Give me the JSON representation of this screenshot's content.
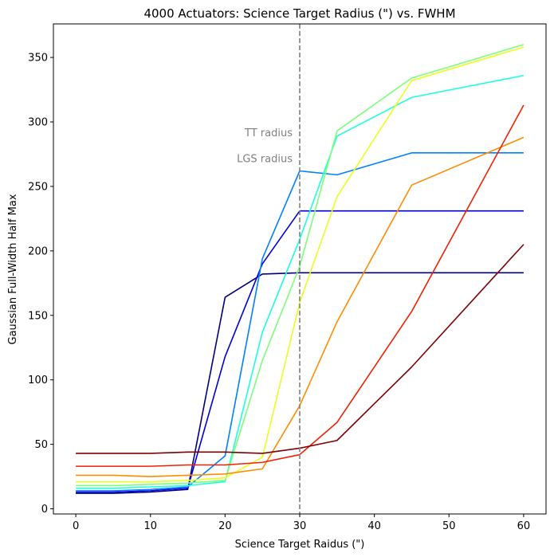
{
  "chart_data": {
    "type": "line",
    "title": "4000 Actuators: Science Target Radius (\") vs. FWHM",
    "xlabel": "Science Target Raidus (\")",
    "ylabel": "Gaussian Full-Width Half Max",
    "xlim": [
      -3,
      63
    ],
    "ylim": [
      -4,
      376
    ],
    "xticks": [
      0,
      10,
      20,
      30,
      40,
      50,
      60
    ],
    "yticks": [
      0,
      50,
      100,
      150,
      200,
      250,
      300,
      350
    ],
    "grid": false,
    "legend": "none",
    "vline": {
      "x": 30,
      "color": "#808080",
      "style": "dashed"
    },
    "annotations": [
      {
        "text": "TT radius",
        "x": 30,
        "y": 292
      },
      {
        "text": "LGS radius",
        "x": 30,
        "y": 272
      }
    ],
    "x": [
      0,
      5,
      10,
      15,
      20,
      25,
      30,
      35,
      45,
      60
    ],
    "series": [
      {
        "color": "#00007f",
        "values": [
          12,
          12,
          13,
          15,
          164,
          182,
          183,
          183,
          183,
          183
        ]
      },
      {
        "color": "#0000dd",
        "values": [
          13,
          13,
          14,
          16,
          118,
          190,
          231,
          231,
          231,
          231
        ]
      },
      {
        "color": "#0080ff",
        "values": [
          14,
          14,
          15,
          17,
          41,
          194,
          262,
          259,
          276,
          276
        ]
      },
      {
        "color": "#1cffdb",
        "values": [
          16,
          16,
          17,
          18,
          21,
          137,
          209,
          289,
          319,
          336
        ]
      },
      {
        "color": "#7cff79",
        "values": [
          18,
          18,
          19,
          20,
          22,
          115,
          188,
          293,
          334,
          360
        ]
      },
      {
        "color": "#e8ff1f",
        "values": [
          21,
          21,
          21,
          22,
          24,
          40,
          160,
          242,
          332,
          358
        ]
      },
      {
        "color": "#ff8c00",
        "values": [
          26,
          26,
          25,
          26,
          27,
          31,
          80,
          145,
          251,
          288
        ]
      },
      {
        "color": "#f02005",
        "values": [
          33,
          33,
          33,
          34,
          34,
          36,
          42,
          67,
          153,
          313
        ]
      },
      {
        "color": "#7f0000",
        "values": [
          43,
          43,
          43,
          44,
          44,
          43,
          47,
          53,
          110,
          205
        ]
      }
    ]
  }
}
